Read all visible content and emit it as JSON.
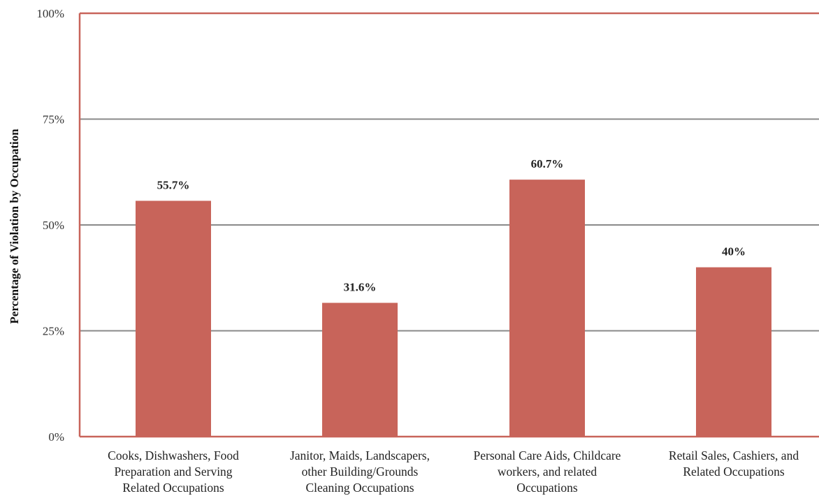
{
  "chart_data": {
    "type": "bar",
    "title": "",
    "xlabel": "",
    "ylabel": "Percentage of Violation by Occupation",
    "categories": [
      "Cooks, Dishwashers, Food\nPreparation and Serving\nRelated Occupations",
      "Janitor, Maids, Landscapers,\nother Building/Grounds\nCleaning Occupations",
      "Personal Care Aids, Childcare\nworkers, and related\nOccupations",
      "Retail Sales, Cashiers, and\nRelated Occupations"
    ],
    "values": [
      55.7,
      31.6,
      60.7,
      40
    ],
    "data_labels": [
      "55.7%",
      "31.6%",
      "60.7%",
      "40%"
    ],
    "ylim": [
      0,
      100
    ],
    "yticks": [
      0,
      25,
      50,
      75,
      100
    ],
    "ytick_labels": [
      "0%",
      "25%",
      "50%",
      "75%",
      "100%"
    ],
    "grid": true,
    "colors": {
      "bar": "#c8645a",
      "frame": "#c8645a",
      "grid": "#8a8a8a"
    }
  }
}
